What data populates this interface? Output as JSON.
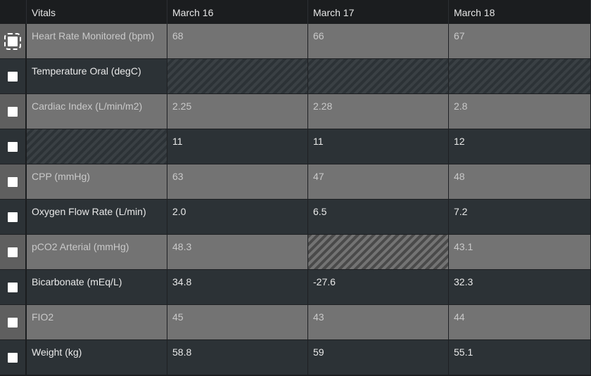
{
  "header": {
    "col_label": "Vitals",
    "dates": [
      "March 16",
      "March 17",
      "March 18"
    ]
  },
  "rows": [
    {
      "label": "Heart Rate Monitored (bpm)",
      "values": [
        "68",
        "66",
        "67"
      ],
      "hatched": [
        false,
        false,
        false,
        false
      ],
      "focused": true
    },
    {
      "label": "Temperature Oral (degC)",
      "values": [
        "",
        "",
        ""
      ],
      "hatched": [
        false,
        true,
        true,
        true
      ]
    },
    {
      "label": "Cardiac Index (L/min/m2)",
      "values": [
        "2.25",
        "2.28",
        "2.8"
      ],
      "hatched": [
        false,
        false,
        false,
        false
      ]
    },
    {
      "label": "",
      "values": [
        "11",
        "11",
        "12"
      ],
      "hatched": [
        true,
        false,
        false,
        false
      ]
    },
    {
      "label": "CPP (mmHg)",
      "values": [
        "63",
        "47",
        "48"
      ],
      "hatched": [
        false,
        false,
        false,
        false
      ]
    },
    {
      "label": "Oxygen Flow Rate (L/min)",
      "values": [
        "2.0",
        "6.5",
        "7.2"
      ],
      "hatched": [
        false,
        false,
        false,
        false
      ]
    },
    {
      "label": "pCO2 Arterial (mmHg)",
      "values": [
        "48.3",
        "",
        "43.1"
      ],
      "hatched": [
        false,
        false,
        true,
        false
      ]
    },
    {
      "label": "Bicarbonate (mEq/L)",
      "values": [
        "34.8",
        "-27.6",
        "32.3"
      ],
      "hatched": [
        false,
        false,
        false,
        false
      ]
    },
    {
      "label": "FIO2",
      "values": [
        "45",
        "43",
        "44"
      ],
      "hatched": [
        false,
        false,
        false,
        false
      ]
    },
    {
      "label": "Weight (kg)",
      "values": [
        "58.8",
        "59",
        "55.1"
      ],
      "hatched": [
        false,
        false,
        false,
        false
      ]
    }
  ]
}
